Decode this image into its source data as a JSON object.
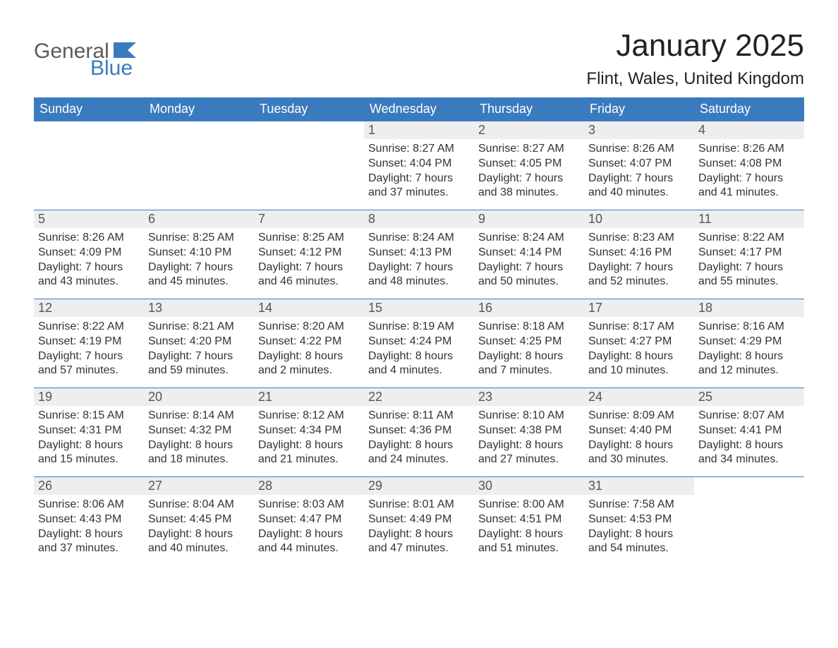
{
  "logo": {
    "text1": "General",
    "text2": "Blue",
    "flag_color": "#3a7bbf"
  },
  "title": "January 2025",
  "location": "Flint, Wales, United Kingdom",
  "day_names": [
    "Sunday",
    "Monday",
    "Tuesday",
    "Wednesday",
    "Thursday",
    "Friday",
    "Saturday"
  ],
  "colors": {
    "header_bg": "#3a7bbf",
    "header_text": "#ffffff",
    "daynum_bg": "#eeeeee",
    "daynum_text": "#555555",
    "body_text": "#333333",
    "week_border": "#3a7bbf",
    "page_bg": "#ffffff"
  },
  "typography": {
    "title_fontsize": 44,
    "location_fontsize": 24,
    "dayheader_fontsize": 18,
    "daynum_fontsize": 18,
    "body_fontsize": 16,
    "font_family": "Arial"
  },
  "layout": {
    "columns": 7,
    "weeks": 5,
    "start_day": "Sunday"
  },
  "weeks": [
    [
      {
        "day": null
      },
      {
        "day": null
      },
      {
        "day": null
      },
      {
        "day": 1,
        "sunrise": "8:27 AM",
        "sunset": "4:04 PM",
        "daylight_h": 7,
        "daylight_m": 37
      },
      {
        "day": 2,
        "sunrise": "8:27 AM",
        "sunset": "4:05 PM",
        "daylight_h": 7,
        "daylight_m": 38
      },
      {
        "day": 3,
        "sunrise": "8:26 AM",
        "sunset": "4:07 PM",
        "daylight_h": 7,
        "daylight_m": 40
      },
      {
        "day": 4,
        "sunrise": "8:26 AM",
        "sunset": "4:08 PM",
        "daylight_h": 7,
        "daylight_m": 41
      }
    ],
    [
      {
        "day": 5,
        "sunrise": "8:26 AM",
        "sunset": "4:09 PM",
        "daylight_h": 7,
        "daylight_m": 43
      },
      {
        "day": 6,
        "sunrise": "8:25 AM",
        "sunset": "4:10 PM",
        "daylight_h": 7,
        "daylight_m": 45
      },
      {
        "day": 7,
        "sunrise": "8:25 AM",
        "sunset": "4:12 PM",
        "daylight_h": 7,
        "daylight_m": 46
      },
      {
        "day": 8,
        "sunrise": "8:24 AM",
        "sunset": "4:13 PM",
        "daylight_h": 7,
        "daylight_m": 48
      },
      {
        "day": 9,
        "sunrise": "8:24 AM",
        "sunset": "4:14 PM",
        "daylight_h": 7,
        "daylight_m": 50
      },
      {
        "day": 10,
        "sunrise": "8:23 AM",
        "sunset": "4:16 PM",
        "daylight_h": 7,
        "daylight_m": 52
      },
      {
        "day": 11,
        "sunrise": "8:22 AM",
        "sunset": "4:17 PM",
        "daylight_h": 7,
        "daylight_m": 55
      }
    ],
    [
      {
        "day": 12,
        "sunrise": "8:22 AM",
        "sunset": "4:19 PM",
        "daylight_h": 7,
        "daylight_m": 57
      },
      {
        "day": 13,
        "sunrise": "8:21 AM",
        "sunset": "4:20 PM",
        "daylight_h": 7,
        "daylight_m": 59
      },
      {
        "day": 14,
        "sunrise": "8:20 AM",
        "sunset": "4:22 PM",
        "daylight_h": 8,
        "daylight_m": 2
      },
      {
        "day": 15,
        "sunrise": "8:19 AM",
        "sunset": "4:24 PM",
        "daylight_h": 8,
        "daylight_m": 4
      },
      {
        "day": 16,
        "sunrise": "8:18 AM",
        "sunset": "4:25 PM",
        "daylight_h": 8,
        "daylight_m": 7
      },
      {
        "day": 17,
        "sunrise": "8:17 AM",
        "sunset": "4:27 PM",
        "daylight_h": 8,
        "daylight_m": 10
      },
      {
        "day": 18,
        "sunrise": "8:16 AM",
        "sunset": "4:29 PM",
        "daylight_h": 8,
        "daylight_m": 12
      }
    ],
    [
      {
        "day": 19,
        "sunrise": "8:15 AM",
        "sunset": "4:31 PM",
        "daylight_h": 8,
        "daylight_m": 15
      },
      {
        "day": 20,
        "sunrise": "8:14 AM",
        "sunset": "4:32 PM",
        "daylight_h": 8,
        "daylight_m": 18
      },
      {
        "day": 21,
        "sunrise": "8:12 AM",
        "sunset": "4:34 PM",
        "daylight_h": 8,
        "daylight_m": 21
      },
      {
        "day": 22,
        "sunrise": "8:11 AM",
        "sunset": "4:36 PM",
        "daylight_h": 8,
        "daylight_m": 24
      },
      {
        "day": 23,
        "sunrise": "8:10 AM",
        "sunset": "4:38 PM",
        "daylight_h": 8,
        "daylight_m": 27
      },
      {
        "day": 24,
        "sunrise": "8:09 AM",
        "sunset": "4:40 PM",
        "daylight_h": 8,
        "daylight_m": 30
      },
      {
        "day": 25,
        "sunrise": "8:07 AM",
        "sunset": "4:41 PM",
        "daylight_h": 8,
        "daylight_m": 34
      }
    ],
    [
      {
        "day": 26,
        "sunrise": "8:06 AM",
        "sunset": "4:43 PM",
        "daylight_h": 8,
        "daylight_m": 37
      },
      {
        "day": 27,
        "sunrise": "8:04 AM",
        "sunset": "4:45 PM",
        "daylight_h": 8,
        "daylight_m": 40
      },
      {
        "day": 28,
        "sunrise": "8:03 AM",
        "sunset": "4:47 PM",
        "daylight_h": 8,
        "daylight_m": 44
      },
      {
        "day": 29,
        "sunrise": "8:01 AM",
        "sunset": "4:49 PM",
        "daylight_h": 8,
        "daylight_m": 47
      },
      {
        "day": 30,
        "sunrise": "8:00 AM",
        "sunset": "4:51 PM",
        "daylight_h": 8,
        "daylight_m": 51
      },
      {
        "day": 31,
        "sunrise": "7:58 AM",
        "sunset": "4:53 PM",
        "daylight_h": 8,
        "daylight_m": 54
      },
      {
        "day": null
      }
    ]
  ],
  "labels": {
    "sunrise": "Sunrise",
    "sunset": "Sunset",
    "daylight": "Daylight",
    "hours": "hours",
    "and": "and",
    "minutes": "minutes"
  }
}
